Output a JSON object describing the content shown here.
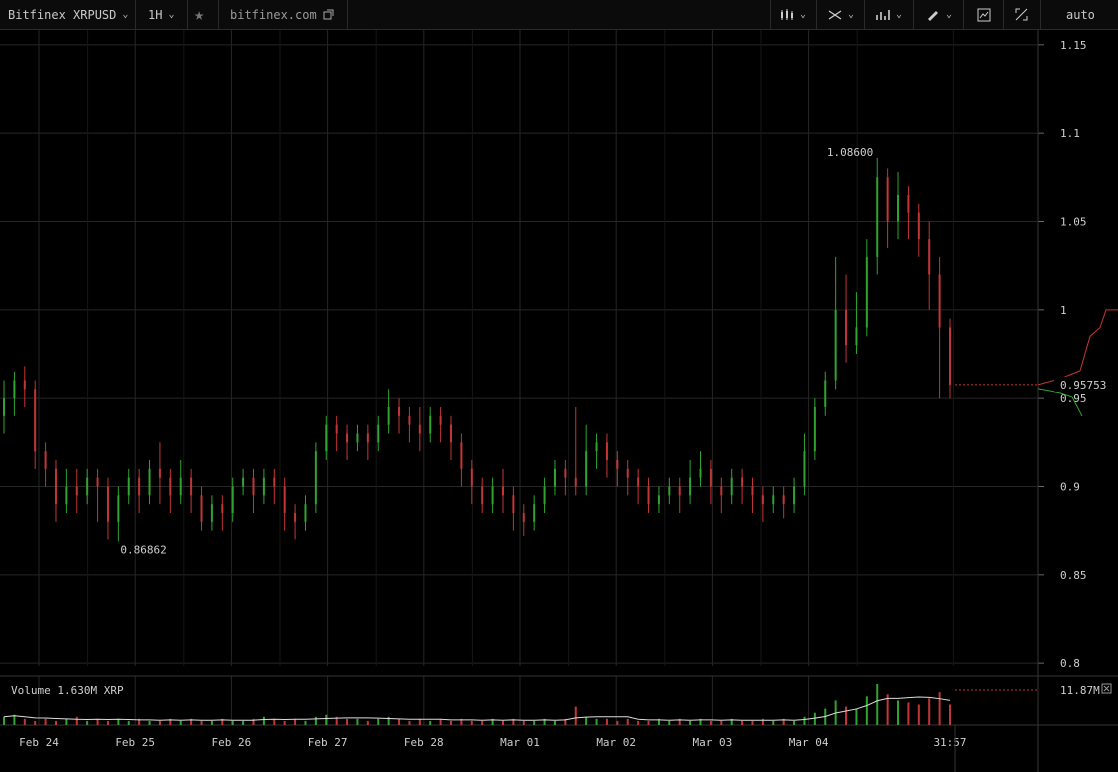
{
  "toolbar": {
    "symbol": "Bitfinex XRPUSD",
    "interval": "1H",
    "link": "bitfinex.com",
    "scale_mode": "auto"
  },
  "chart_data": {
    "type": "candlestick",
    "price_axis": {
      "ticks": [
        "1.15",
        "1.1",
        "1.05",
        "1",
        "0.95",
        "0.9",
        "0.85",
        "0.8"
      ],
      "range": [
        0.795,
        1.155
      ]
    },
    "time_axis": {
      "labels": [
        "Feb 24",
        "Feb 25",
        "Feb 26",
        "Feb 27",
        "Feb 28",
        "Mar 01",
        "Mar 02",
        "Mar 03",
        "Mar 04"
      ]
    },
    "annotations": {
      "high": "1.08600",
      "low": "0.86862"
    },
    "last_price": "0.95753",
    "countdown": "31:57",
    "volume": {
      "label": "Volume 1.630M XRP",
      "axis_value": "11.87M"
    },
    "colors": {
      "up": "#2fa52f",
      "down": "#c43636",
      "grid": "#262626",
      "background": "#000000"
    },
    "candles": [
      [
        0.94,
        0.95,
        0.93,
        0.96
      ],
      [
        0.95,
        0.96,
        0.94,
        0.965
      ],
      [
        0.96,
        0.955,
        0.945,
        0.968
      ],
      [
        0.955,
        0.92,
        0.91,
        0.96
      ],
      [
        0.92,
        0.91,
        0.9,
        0.925
      ],
      [
        0.91,
        0.89,
        0.88,
        0.915
      ],
      [
        0.89,
        0.9,
        0.885,
        0.91
      ],
      [
        0.9,
        0.895,
        0.885,
        0.91
      ],
      [
        0.895,
        0.905,
        0.89,
        0.91
      ],
      [
        0.905,
        0.9,
        0.88,
        0.91
      ],
      [
        0.9,
        0.88,
        0.87,
        0.905
      ],
      [
        0.88,
        0.895,
        0.869,
        0.9
      ],
      [
        0.895,
        0.905,
        0.89,
        0.91
      ],
      [
        0.905,
        0.895,
        0.885,
        0.91
      ],
      [
        0.895,
        0.91,
        0.89,
        0.915
      ],
      [
        0.91,
        0.905,
        0.89,
        0.925
      ],
      [
        0.905,
        0.895,
        0.885,
        0.91
      ],
      [
        0.895,
        0.905,
        0.89,
        0.915
      ],
      [
        0.905,
        0.895,
        0.885,
        0.91
      ],
      [
        0.895,
        0.88,
        0.875,
        0.9
      ],
      [
        0.88,
        0.89,
        0.875,
        0.895
      ],
      [
        0.89,
        0.885,
        0.875,
        0.895
      ],
      [
        0.885,
        0.9,
        0.88,
        0.905
      ],
      [
        0.9,
        0.905,
        0.895,
        0.91
      ],
      [
        0.905,
        0.895,
        0.885,
        0.91
      ],
      [
        0.895,
        0.905,
        0.89,
        0.91
      ],
      [
        0.905,
        0.9,
        0.89,
        0.91
      ],
      [
        0.9,
        0.885,
        0.875,
        0.905
      ],
      [
        0.885,
        0.88,
        0.87,
        0.89
      ],
      [
        0.88,
        0.89,
        0.875,
        0.895
      ],
      [
        0.89,
        0.92,
        0.885,
        0.925
      ],
      [
        0.92,
        0.935,
        0.915,
        0.94
      ],
      [
        0.935,
        0.93,
        0.92,
        0.94
      ],
      [
        0.93,
        0.925,
        0.915,
        0.935
      ],
      [
        0.925,
        0.93,
        0.92,
        0.935
      ],
      [
        0.93,
        0.925,
        0.915,
        0.935
      ],
      [
        0.925,
        0.935,
        0.92,
        0.94
      ],
      [
        0.935,
        0.945,
        0.93,
        0.955
      ],
      [
        0.945,
        0.94,
        0.93,
        0.95
      ],
      [
        0.94,
        0.935,
        0.925,
        0.945
      ],
      [
        0.935,
        0.93,
        0.92,
        0.945
      ],
      [
        0.93,
        0.94,
        0.925,
        0.945
      ],
      [
        0.94,
        0.935,
        0.925,
        0.945
      ],
      [
        0.935,
        0.925,
        0.915,
        0.94
      ],
      [
        0.925,
        0.91,
        0.9,
        0.93
      ],
      [
        0.91,
        0.9,
        0.89,
        0.915
      ],
      [
        0.9,
        0.89,
        0.885,
        0.905
      ],
      [
        0.89,
        0.9,
        0.885,
        0.905
      ],
      [
        0.9,
        0.895,
        0.885,
        0.91
      ],
      [
        0.895,
        0.885,
        0.875,
        0.9
      ],
      [
        0.885,
        0.88,
        0.872,
        0.89
      ],
      [
        0.88,
        0.89,
        0.875,
        0.895
      ],
      [
        0.89,
        0.9,
        0.885,
        0.905
      ],
      [
        0.9,
        0.91,
        0.895,
        0.915
      ],
      [
        0.91,
        0.905,
        0.895,
        0.915
      ],
      [
        0.905,
        0.9,
        0.895,
        0.945
      ],
      [
        0.9,
        0.92,
        0.895,
        0.935
      ],
      [
        0.92,
        0.925,
        0.91,
        0.93
      ],
      [
        0.925,
        0.915,
        0.905,
        0.93
      ],
      [
        0.915,
        0.91,
        0.9,
        0.92
      ],
      [
        0.91,
        0.905,
        0.895,
        0.915
      ],
      [
        0.905,
        0.9,
        0.89,
        0.91
      ],
      [
        0.9,
        0.89,
        0.885,
        0.905
      ],
      [
        0.89,
        0.895,
        0.885,
        0.9
      ],
      [
        0.895,
        0.9,
        0.89,
        0.905
      ],
      [
        0.9,
        0.895,
        0.885,
        0.905
      ],
      [
        0.895,
        0.905,
        0.89,
        0.915
      ],
      [
        0.905,
        0.91,
        0.9,
        0.92
      ],
      [
        0.91,
        0.9,
        0.89,
        0.915
      ],
      [
        0.9,
        0.895,
        0.885,
        0.905
      ],
      [
        0.895,
        0.905,
        0.89,
        0.91
      ],
      [
        0.905,
        0.9,
        0.89,
        0.91
      ],
      [
        0.9,
        0.895,
        0.885,
        0.905
      ],
      [
        0.895,
        0.89,
        0.88,
        0.9
      ],
      [
        0.89,
        0.895,
        0.885,
        0.9
      ],
      [
        0.895,
        0.89,
        0.882,
        0.9
      ],
      [
        0.89,
        0.9,
        0.885,
        0.905
      ],
      [
        0.9,
        0.92,
        0.895,
        0.93
      ],
      [
        0.92,
        0.945,
        0.915,
        0.95
      ],
      [
        0.945,
        0.96,
        0.94,
        0.965
      ],
      [
        0.96,
        1.0,
        0.955,
        1.03
      ],
      [
        1.0,
        0.98,
        0.97,
        1.02
      ],
      [
        0.98,
        0.99,
        0.975,
        1.01
      ],
      [
        0.99,
        1.03,
        0.985,
        1.04
      ],
      [
        1.03,
        1.075,
        1.02,
        1.086
      ],
      [
        1.075,
        1.05,
        1.035,
        1.08
      ],
      [
        1.05,
        1.065,
        1.04,
        1.078
      ],
      [
        1.065,
        1.055,
        1.04,
        1.07
      ],
      [
        1.055,
        1.04,
        1.03,
        1.06
      ],
      [
        1.04,
        1.02,
        1.0,
        1.05
      ],
      [
        1.02,
        0.99,
        0.95,
        1.03
      ],
      [
        0.99,
        0.9575,
        0.95,
        0.995
      ]
    ],
    "volumes": [
      0.4,
      0.5,
      0.3,
      0.2,
      0.3,
      0.2,
      0.3,
      0.4,
      0.2,
      0.3,
      0.2,
      0.3,
      0.2,
      0.3,
      0.2,
      0.2,
      0.3,
      0.2,
      0.3,
      0.2,
      0.2,
      0.3,
      0.2,
      0.2,
      0.3,
      0.4,
      0.3,
      0.2,
      0.3,
      0.2,
      0.4,
      0.5,
      0.4,
      0.3,
      0.3,
      0.2,
      0.3,
      0.4,
      0.3,
      0.2,
      0.3,
      0.2,
      0.3,
      0.2,
      0.3,
      0.2,
      0.2,
      0.3,
      0.2,
      0.3,
      0.2,
      0.2,
      0.3,
      0.2,
      0.3,
      0.9,
      0.4,
      0.3,
      0.3,
      0.2,
      0.3,
      0.2,
      0.2,
      0.3,
      0.2,
      0.3,
      0.2,
      0.3,
      0.2,
      0.2,
      0.3,
      0.2,
      0.2,
      0.3,
      0.2,
      0.3,
      0.2,
      0.4,
      0.6,
      0.8,
      1.2,
      0.9,
      0.8,
      1.4,
      2.0,
      1.5,
      1.2,
      1.1,
      1.0,
      1.3,
      1.6,
      1.0
    ]
  }
}
